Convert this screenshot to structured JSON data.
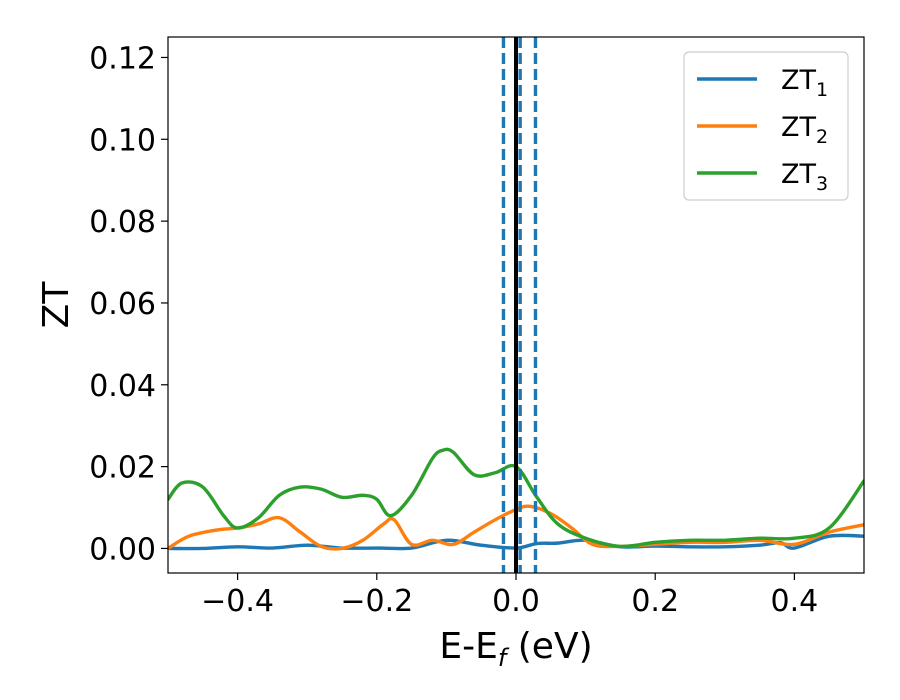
{
  "chart_data": {
    "type": "line",
    "xlabel": "E-E",
    "xlabel_sub": "f",
    "xlabel_unit": " (eV)",
    "ylabel": "ZT",
    "xlim": [
      -0.5,
      0.5
    ],
    "ylim": [
      -0.006,
      0.125
    ],
    "x_ticks": [
      -0.4,
      -0.2,
      0.0,
      0.2,
      0.4
    ],
    "x_tick_labels": [
      "−0.4",
      "−0.2",
      "0.0",
      "0.2",
      "0.4"
    ],
    "y_ticks": [
      0.0,
      0.02,
      0.04,
      0.06,
      0.08,
      0.1,
      0.12
    ],
    "y_tick_labels": [
      "0.00",
      "0.02",
      "0.04",
      "0.06",
      "0.08",
      "0.10",
      "0.12"
    ],
    "grid": false,
    "legend_position": "top-right",
    "vlines": [
      {
        "x": 0.0,
        "style": "solid",
        "color": "#000000"
      },
      {
        "x": -0.018,
        "style": "dashed",
        "color": "#1f77b4"
      },
      {
        "x": 0.006,
        "style": "dashed",
        "color": "#1f77b4"
      },
      {
        "x": 0.028,
        "style": "dashed",
        "color": "#1f77b4"
      }
    ],
    "series": [
      {
        "name": "ZT",
        "sub": "1",
        "color": "#1f77b4",
        "x": [
          -0.5,
          -0.45,
          -0.4,
          -0.35,
          -0.3,
          -0.25,
          -0.2,
          -0.15,
          -0.1,
          -0.05,
          0.0,
          0.03,
          0.06,
          0.1,
          0.15,
          0.2,
          0.25,
          0.3,
          0.35,
          0.38,
          0.4,
          0.45,
          0.5
        ],
        "y": [
          0.0,
          0.0,
          0.0004,
          0.0001,
          0.0008,
          0.0001,
          0.0001,
          0.0001,
          0.002,
          0.0008,
          0.0001,
          0.0012,
          0.0013,
          0.002,
          0.0004,
          0.0006,
          0.0004,
          0.0004,
          0.0008,
          0.0014,
          0.0001,
          0.003,
          0.003
        ]
      },
      {
        "name": "ZT",
        "sub": "2",
        "color": "#ff7f0e",
        "x": [
          -0.5,
          -0.47,
          -0.43,
          -0.4,
          -0.37,
          -0.34,
          -0.31,
          -0.28,
          -0.25,
          -0.22,
          -0.19,
          -0.175,
          -0.15,
          -0.12,
          -0.09,
          -0.06,
          -0.03,
          0.0,
          0.02,
          0.05,
          0.08,
          0.11,
          0.15,
          0.2,
          0.25,
          0.3,
          0.35,
          0.4,
          0.45,
          0.5
        ],
        "y": [
          0.0,
          0.003,
          0.0045,
          0.005,
          0.006,
          0.0075,
          0.004,
          0.0005,
          0.0,
          0.002,
          0.006,
          0.007,
          0.001,
          0.002,
          0.001,
          0.004,
          0.007,
          0.0095,
          0.0103,
          0.0085,
          0.005,
          0.001,
          0.0005,
          0.001,
          0.0015,
          0.0015,
          0.002,
          0.001,
          0.004,
          0.0058
        ]
      },
      {
        "name": "ZT",
        "sub": "3",
        "color": "#2ca02c",
        "x": [
          -0.5,
          -0.48,
          -0.45,
          -0.42,
          -0.4,
          -0.37,
          -0.34,
          -0.31,
          -0.28,
          -0.25,
          -0.22,
          -0.2,
          -0.18,
          -0.15,
          -0.12,
          -0.105,
          -0.09,
          -0.06,
          -0.03,
          0.0,
          0.03,
          0.06,
          0.1,
          0.15,
          0.2,
          0.25,
          0.3,
          0.35,
          0.4,
          0.45,
          0.5
        ],
        "y": [
          0.012,
          0.016,
          0.015,
          0.008,
          0.005,
          0.0075,
          0.013,
          0.015,
          0.0145,
          0.0125,
          0.013,
          0.012,
          0.008,
          0.013,
          0.022,
          0.024,
          0.0235,
          0.018,
          0.0185,
          0.02,
          0.0125,
          0.006,
          0.0025,
          0.0005,
          0.0015,
          0.002,
          0.002,
          0.0025,
          0.0025,
          0.005,
          0.0165
        ]
      }
    ]
  }
}
